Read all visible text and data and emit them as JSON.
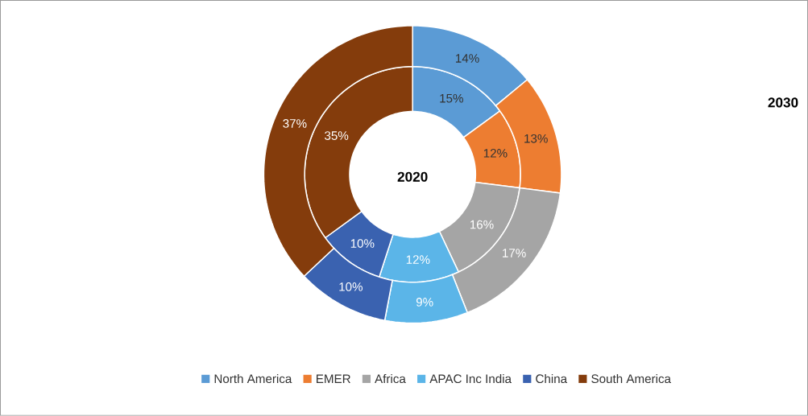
{
  "chart_data": {
    "type": "donut",
    "categories": [
      "North America",
      "EMER",
      "Africa",
      "APAC Inc India",
      "China",
      "South America"
    ],
    "colors": [
      "#5b9bd5",
      "#ed7d31",
      "#a5a5a5",
      "#5bb5e8",
      "#3a62b0",
      "#843c0c"
    ],
    "series": [
      {
        "name": "2020",
        "values": [
          15,
          12,
          16,
          12,
          10,
          35
        ],
        "value_labels": [
          "15%",
          "12%",
          "16%",
          "12%",
          "10%",
          "35%"
        ]
      },
      {
        "name": "2030",
        "values": [
          14,
          13,
          17,
          9,
          10,
          37
        ],
        "value_labels": [
          "14%",
          "13%",
          "17%",
          "9%",
          "10%",
          "37%"
        ]
      }
    ],
    "legend": "bottom"
  }
}
